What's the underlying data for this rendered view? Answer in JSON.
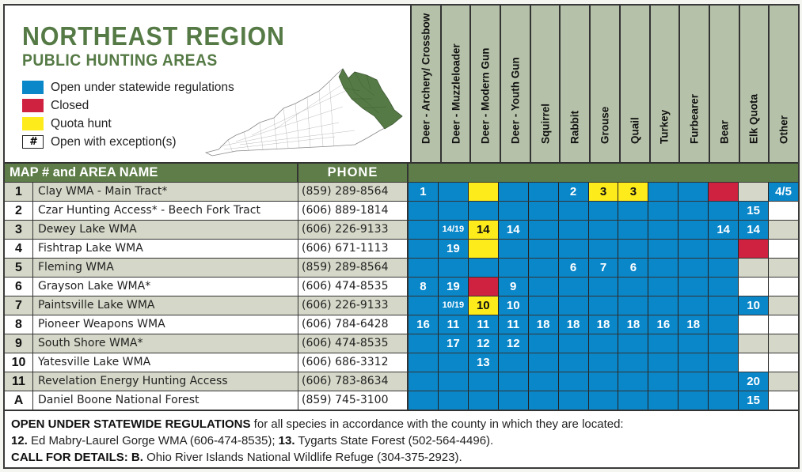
{
  "title": {
    "main": "NORTHEAST REGION",
    "sub": "PUBLIC HUNTING AREAS"
  },
  "legend": [
    {
      "label": "Open under statewide regulations",
      "color": "#0a87c9",
      "symbol": ""
    },
    {
      "label": "Closed",
      "color": "#cf2140",
      "symbol": ""
    },
    {
      "label": "Quota hunt",
      "color": "#fdeb1c",
      "symbol": ""
    },
    {
      "label": "Open with exception(s)",
      "color": "#ffffff",
      "symbol": "#"
    }
  ],
  "map": {
    "icon": "kentucky-county-map-icon",
    "highlight_color": "#557a45"
  },
  "colors": {
    "open": "#0a87c9",
    "closed": "#cf2140",
    "quota": "#fdeb1c",
    "header_green": "#5e7d48",
    "title_green": "#557a45",
    "species_header_bg": "#b5c1a8",
    "alt_row": "#d5d8c8"
  },
  "table": {
    "header": {
      "name": "MAP # and AREA NAME",
      "phone": "PHONE"
    },
    "species": [
      "Deer - Archery/ Crossbow",
      "Deer - Muzzleloader",
      "Deer - Modern Gun",
      "Deer -  Youth Gun",
      "Squirrel",
      "Rabbit",
      "Grouse",
      "Quail",
      "Turkey",
      "Furbearer",
      "Bear",
      "Elk Quota",
      "Other"
    ],
    "rows": [
      {
        "num": "1",
        "name": "Clay WMA - Main Tract*",
        "phone": "(859) 289-8564",
        "cells": [
          {
            "s": "open",
            "t": "1"
          },
          {
            "s": "open",
            "t": ""
          },
          {
            "s": "quota",
            "t": ""
          },
          {
            "s": "open",
            "t": ""
          },
          {
            "s": "open",
            "t": ""
          },
          {
            "s": "open",
            "t": "2"
          },
          {
            "s": "quota",
            "t": "3"
          },
          {
            "s": "quota",
            "t": "3"
          },
          {
            "s": "open",
            "t": ""
          },
          {
            "s": "open",
            "t": ""
          },
          {
            "s": "closed",
            "t": ""
          },
          {
            "s": "gray",
            "t": ""
          },
          {
            "s": "open",
            "t": "4/5"
          }
        ]
      },
      {
        "num": "2",
        "name": "Czar Hunting Access* - Beech Fork Tract",
        "phone": "(606) 889-1814",
        "cells": [
          {
            "s": "open",
            "t": ""
          },
          {
            "s": "open",
            "t": ""
          },
          {
            "s": "open",
            "t": ""
          },
          {
            "s": "open",
            "t": ""
          },
          {
            "s": "open",
            "t": ""
          },
          {
            "s": "open",
            "t": ""
          },
          {
            "s": "open",
            "t": ""
          },
          {
            "s": "open",
            "t": ""
          },
          {
            "s": "open",
            "t": ""
          },
          {
            "s": "open",
            "t": ""
          },
          {
            "s": "open",
            "t": ""
          },
          {
            "s": "open",
            "t": "15"
          },
          {
            "s": "white",
            "t": ""
          }
        ]
      },
      {
        "num": "3",
        "name": "Dewey Lake WMA",
        "phone": "(606) 226-9133",
        "cells": [
          {
            "s": "open",
            "t": ""
          },
          {
            "s": "open",
            "t": "14/19"
          },
          {
            "s": "quota",
            "t": "14"
          },
          {
            "s": "open",
            "t": "14"
          },
          {
            "s": "open",
            "t": ""
          },
          {
            "s": "open",
            "t": ""
          },
          {
            "s": "open",
            "t": ""
          },
          {
            "s": "open",
            "t": ""
          },
          {
            "s": "open",
            "t": ""
          },
          {
            "s": "open",
            "t": ""
          },
          {
            "s": "open",
            "t": "14"
          },
          {
            "s": "open",
            "t": "14"
          },
          {
            "s": "gray",
            "t": ""
          }
        ]
      },
      {
        "num": "4",
        "name": "Fishtrap Lake WMA",
        "phone": "(606) 671-1113",
        "cells": [
          {
            "s": "open",
            "t": ""
          },
          {
            "s": "open",
            "t": "19"
          },
          {
            "s": "quota",
            "t": ""
          },
          {
            "s": "open",
            "t": ""
          },
          {
            "s": "open",
            "t": ""
          },
          {
            "s": "open",
            "t": ""
          },
          {
            "s": "open",
            "t": ""
          },
          {
            "s": "open",
            "t": ""
          },
          {
            "s": "open",
            "t": ""
          },
          {
            "s": "open",
            "t": ""
          },
          {
            "s": "open",
            "t": ""
          },
          {
            "s": "closed",
            "t": ""
          },
          {
            "s": "white",
            "t": ""
          }
        ]
      },
      {
        "num": "5",
        "name": "Fleming WMA",
        "phone": "(859) 289-8564",
        "cells": [
          {
            "s": "open",
            "t": ""
          },
          {
            "s": "open",
            "t": ""
          },
          {
            "s": "open",
            "t": ""
          },
          {
            "s": "open",
            "t": ""
          },
          {
            "s": "open",
            "t": ""
          },
          {
            "s": "open",
            "t": "6"
          },
          {
            "s": "open",
            "t": "7"
          },
          {
            "s": "open",
            "t": "6"
          },
          {
            "s": "open",
            "t": ""
          },
          {
            "s": "open",
            "t": ""
          },
          {
            "s": "open",
            "t": ""
          },
          {
            "s": "gray",
            "t": ""
          },
          {
            "s": "gray",
            "t": ""
          }
        ]
      },
      {
        "num": "6",
        "name": "Grayson Lake WMA*",
        "phone": "(606) 474-8535",
        "cells": [
          {
            "s": "open",
            "t": "8"
          },
          {
            "s": "open",
            "t": "19"
          },
          {
            "s": "closed",
            "t": ""
          },
          {
            "s": "open",
            "t": "9"
          },
          {
            "s": "open",
            "t": ""
          },
          {
            "s": "open",
            "t": ""
          },
          {
            "s": "open",
            "t": ""
          },
          {
            "s": "open",
            "t": ""
          },
          {
            "s": "open",
            "t": ""
          },
          {
            "s": "open",
            "t": ""
          },
          {
            "s": "open",
            "t": ""
          },
          {
            "s": "white",
            "t": ""
          },
          {
            "s": "white",
            "t": ""
          }
        ]
      },
      {
        "num": "7",
        "name": "Paintsville Lake WMA",
        "phone": "(606) 226-9133",
        "cells": [
          {
            "s": "open",
            "t": ""
          },
          {
            "s": "open",
            "t": "10/19"
          },
          {
            "s": "quota",
            "t": "10"
          },
          {
            "s": "open",
            "t": "10"
          },
          {
            "s": "open",
            "t": ""
          },
          {
            "s": "open",
            "t": ""
          },
          {
            "s": "open",
            "t": ""
          },
          {
            "s": "open",
            "t": ""
          },
          {
            "s": "open",
            "t": ""
          },
          {
            "s": "open",
            "t": ""
          },
          {
            "s": "open",
            "t": ""
          },
          {
            "s": "open",
            "t": "10"
          },
          {
            "s": "gray",
            "t": ""
          }
        ]
      },
      {
        "num": "8",
        "name": "Pioneer Weapons WMA",
        "phone": "(606) 784-6428",
        "cells": [
          {
            "s": "open",
            "t": "16"
          },
          {
            "s": "open",
            "t": "11"
          },
          {
            "s": "open",
            "t": "11"
          },
          {
            "s": "open",
            "t": "11"
          },
          {
            "s": "open",
            "t": "18"
          },
          {
            "s": "open",
            "t": "18"
          },
          {
            "s": "open",
            "t": "18"
          },
          {
            "s": "open",
            "t": "18"
          },
          {
            "s": "open",
            "t": "16"
          },
          {
            "s": "open",
            "t": "18"
          },
          {
            "s": "open",
            "t": ""
          },
          {
            "s": "white",
            "t": ""
          },
          {
            "s": "white",
            "t": ""
          }
        ]
      },
      {
        "num": "9",
        "name": "South Shore WMA*",
        "phone": "(606) 474-8535",
        "cells": [
          {
            "s": "open",
            "t": ""
          },
          {
            "s": "open",
            "t": "17"
          },
          {
            "s": "open",
            "t": "12"
          },
          {
            "s": "open",
            "t": "12"
          },
          {
            "s": "open",
            "t": ""
          },
          {
            "s": "open",
            "t": ""
          },
          {
            "s": "open",
            "t": ""
          },
          {
            "s": "open",
            "t": ""
          },
          {
            "s": "open",
            "t": ""
          },
          {
            "s": "open",
            "t": ""
          },
          {
            "s": "open",
            "t": ""
          },
          {
            "s": "gray",
            "t": ""
          },
          {
            "s": "gray",
            "t": ""
          }
        ]
      },
      {
        "num": "10",
        "name": "Yatesville Lake WMA",
        "phone": "(606) 686-3312",
        "cells": [
          {
            "s": "open",
            "t": ""
          },
          {
            "s": "open",
            "t": ""
          },
          {
            "s": "open",
            "t": "13"
          },
          {
            "s": "open",
            "t": ""
          },
          {
            "s": "open",
            "t": ""
          },
          {
            "s": "open",
            "t": ""
          },
          {
            "s": "open",
            "t": ""
          },
          {
            "s": "open",
            "t": ""
          },
          {
            "s": "open",
            "t": ""
          },
          {
            "s": "open",
            "t": ""
          },
          {
            "s": "open",
            "t": ""
          },
          {
            "s": "white",
            "t": ""
          },
          {
            "s": "white",
            "t": ""
          }
        ]
      },
      {
        "num": "11",
        "name": "Revelation Energy Hunting Access",
        "phone": "(606) 783-8634",
        "cells": [
          {
            "s": "open",
            "t": ""
          },
          {
            "s": "open",
            "t": ""
          },
          {
            "s": "open",
            "t": ""
          },
          {
            "s": "open",
            "t": ""
          },
          {
            "s": "open",
            "t": ""
          },
          {
            "s": "open",
            "t": ""
          },
          {
            "s": "open",
            "t": ""
          },
          {
            "s": "open",
            "t": ""
          },
          {
            "s": "open",
            "t": ""
          },
          {
            "s": "open",
            "t": ""
          },
          {
            "s": "open",
            "t": ""
          },
          {
            "s": "open",
            "t": "20"
          },
          {
            "s": "gray",
            "t": ""
          }
        ]
      },
      {
        "num": "A",
        "name": "Daniel Boone National Forest",
        "phone": "(859) 745-3100",
        "cells": [
          {
            "s": "open",
            "t": ""
          },
          {
            "s": "open",
            "t": ""
          },
          {
            "s": "open",
            "t": ""
          },
          {
            "s": "open",
            "t": ""
          },
          {
            "s": "open",
            "t": ""
          },
          {
            "s": "open",
            "t": ""
          },
          {
            "s": "open",
            "t": ""
          },
          {
            "s": "open",
            "t": ""
          },
          {
            "s": "open",
            "t": ""
          },
          {
            "s": "open",
            "t": ""
          },
          {
            "s": "open",
            "t": ""
          },
          {
            "s": "open",
            "t": "15"
          },
          {
            "s": "white",
            "t": ""
          }
        ]
      }
    ]
  },
  "footer": {
    "line1_bold": "OPEN UNDER STATEWIDE REGULATIONS",
    "line1_text": " for all species in accordance with the county in which they are located:",
    "line2_num1": "12.",
    "line2_text1": " Ed Mabry-Laurel Gorge WMA (606-474-8535); ",
    "line2_num2": "13.",
    "line2_text2": " Tygarts State Forest (502-564-4496).",
    "line3_bold": "CALL FOR DETAILS: B.",
    "line3_text": " Ohio River Islands National Wildlife Refuge (304-375-2923)."
  }
}
